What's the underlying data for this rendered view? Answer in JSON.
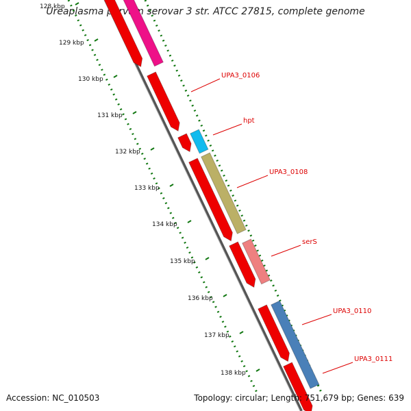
{
  "title": "Ureaplasma parvum serovar 3 str. ATCC 27815, complete genome",
  "footer": {
    "accession": "Accession: NC_010503",
    "summary": "Topology: circular; Length: 751,679 bp; Genes: 639"
  },
  "ruler": {
    "ticks": [
      {
        "label": "128 kbp",
        "kbp": 128
      },
      {
        "label": "129 kbp",
        "kbp": 129
      },
      {
        "label": "130 kbp",
        "kbp": 130
      },
      {
        "label": "131 kbp",
        "kbp": 131
      },
      {
        "label": "132 kbp",
        "kbp": 132
      },
      {
        "label": "133 kbp",
        "kbp": 133
      },
      {
        "label": "134 kbp",
        "kbp": 134
      },
      {
        "label": "135 kbp",
        "kbp": 135
      },
      {
        "label": "136 kbp",
        "kbp": 136
      },
      {
        "label": "137 kbp",
        "kbp": 137
      },
      {
        "label": "138 kbp",
        "kbp": 138
      }
    ]
  },
  "gene_labels": [
    {
      "label": "UPA3_0106",
      "color": "#dd0000"
    },
    {
      "label": "hpt",
      "color": "#dd0000"
    },
    {
      "label": "UPA3_0108",
      "color": "#dd0000"
    },
    {
      "label": "serS",
      "color": "#dd0000"
    },
    {
      "label": "UPA3_0110",
      "color": "#dd0000"
    },
    {
      "label": "UPA3_0111",
      "color": "#dd0000"
    }
  ],
  "colors": {
    "cds_red": "#ee0000",
    "magenta": "#ee1188",
    "cyan": "#11bbee",
    "olive": "#bbb066",
    "salmon": "#ee8080",
    "steelblue": "#4a80b8",
    "backbone": "#777777",
    "gc_green": "#117711"
  }
}
